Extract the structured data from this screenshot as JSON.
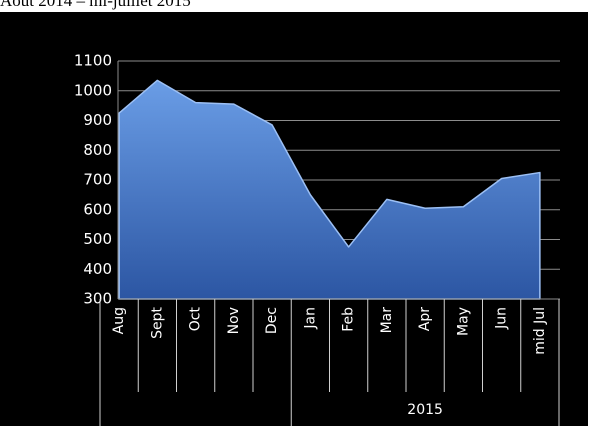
{
  "chart_data": {
    "type": "area",
    "title": "Août 2014 – mi-juillet 2015",
    "categories": [
      "Aug",
      "Sept",
      "Oct",
      "Nov",
      "Dec",
      "Jan",
      "Feb",
      "Mar",
      "Apr",
      "May",
      "Jun",
      "mid Jul"
    ],
    "category_groups": [
      null,
      null,
      null,
      null,
      null,
      "2015",
      "2015",
      "2015",
      "2015",
      "2015",
      "2015",
      "2015"
    ],
    "values": [
      925,
      1035,
      960,
      955,
      885,
      650,
      475,
      635,
      605,
      610,
      705,
      725
    ],
    "color": "#4a7fd0",
    "ylim": [
      300,
      1100
    ],
    "yticks": [
      300,
      400,
      500,
      600,
      700,
      800,
      900,
      1000,
      1100
    ],
    "grid": true
  }
}
